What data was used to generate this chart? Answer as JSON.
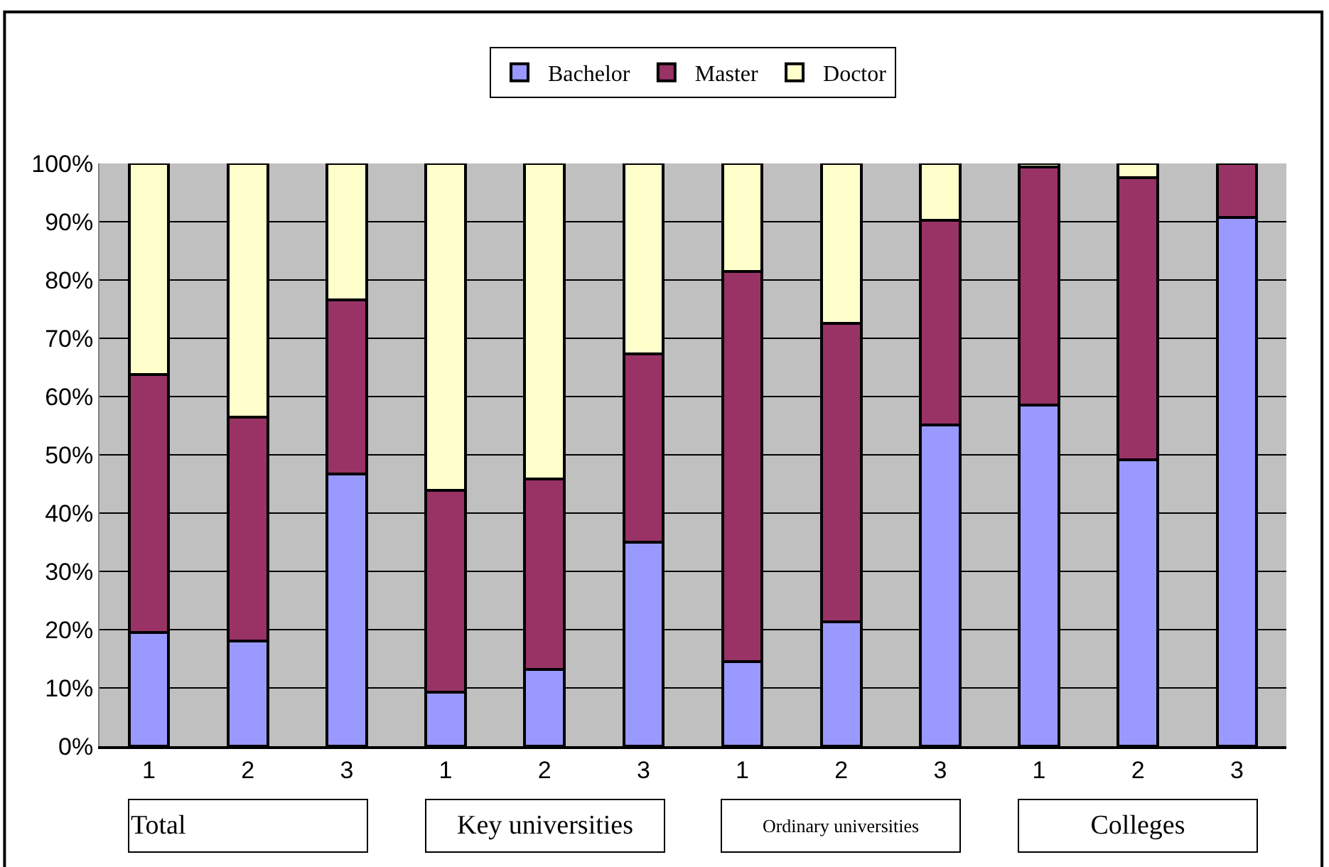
{
  "chart_data": {
    "type": "bar",
    "stacked": true,
    "categories": [
      "1",
      "2",
      "3",
      "1",
      "2",
      "3",
      "1",
      "2",
      "3",
      "1",
      "2",
      "3"
    ],
    "series": [
      {
        "name": "Bachelor",
        "color": "#9999ff",
        "values": [
          19.5,
          18,
          46.7,
          9.3,
          13.2,
          35,
          14.5,
          21.4,
          55.1,
          58.5,
          49.2,
          90.7
        ]
      },
      {
        "name": "Master",
        "color": "#993366",
        "values": [
          44.3,
          38.5,
          29.9,
          34.6,
          32.6,
          32.3,
          67,
          51.2,
          35.1,
          40.9,
          48.4,
          9.3
        ]
      },
      {
        "name": "Doctor",
        "color": "#ffffcc",
        "values": [
          36.2,
          43.5,
          23.4,
          56.1,
          54.2,
          32.7,
          18.5,
          27.4,
          9.8,
          0.6,
          2.4,
          null
        ]
      }
    ],
    "ylim": [
      0,
      100
    ],
    "yticks": [
      {
        "value": 0,
        "label": "0%"
      },
      {
        "value": 10,
        "label": "10%"
      },
      {
        "value": 20,
        "label": "20%"
      },
      {
        "value": 30,
        "label": "30%"
      },
      {
        "value": 40,
        "label": "40%"
      },
      {
        "value": 50,
        "label": "50%"
      },
      {
        "value": 60,
        "label": "60%"
      },
      {
        "value": 70,
        "label": "70%"
      },
      {
        "value": 80,
        "label": "80%"
      },
      {
        "value": 90,
        "label": "90%"
      },
      {
        "value": 100,
        "label": "100%"
      }
    ],
    "annotations": [
      "Total",
      "Key universities",
      "Ordinary universities",
      "Colleges"
    ],
    "grid": "y",
    "legend": "top"
  }
}
